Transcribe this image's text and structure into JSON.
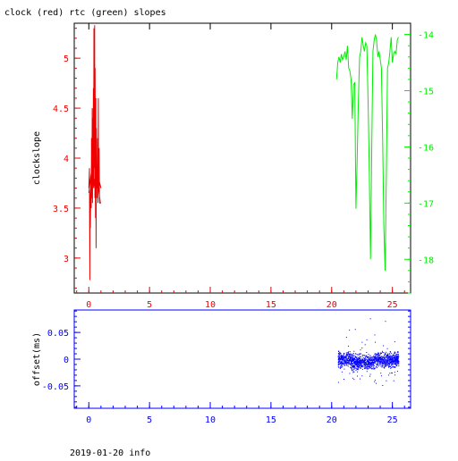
{
  "title": "clock (red) rtc (green) slopes",
  "footer": "2019-01-20 info",
  "colors": {
    "red": "#ee0000",
    "green": "#00ee00",
    "blue": "#0000ff",
    "black": "#000000"
  },
  "chart_data": [
    {
      "type": "line",
      "title": "clock (red) rtc (green) slopes",
      "xlabel": "",
      "ylabel": "clockslope",
      "xlim": [
        -1.2,
        26.5
      ],
      "xticks": [
        0,
        5,
        10,
        15,
        20,
        25
      ],
      "ylim": [
        2.65,
        5.35
      ],
      "yticks": [
        3,
        3.5,
        4,
        4.5,
        5
      ],
      "ytick_labels": [
        "3",
        "3.5",
        "4",
        "4.5",
        "5"
      ],
      "y2lim": [
        -18.6,
        -13.8
      ],
      "y2ticks": [
        -14,
        -15,
        -16,
        -17,
        -18
      ],
      "y2tick_labels": [
        "-14",
        "-15",
        "-16",
        "-17",
        "-18"
      ],
      "grid": false,
      "series": [
        {
          "axis": "left",
          "color": "#ee0000",
          "x": [
            0.0,
            0.05,
            0.08,
            0.1,
            0.12,
            0.15,
            0.18,
            0.2,
            0.22,
            0.25,
            0.28,
            0.3,
            0.33,
            0.35,
            0.38,
            0.4,
            0.42,
            0.45,
            0.48,
            0.5,
            0.52,
            0.55,
            0.58,
            0.6,
            0.62,
            0.65,
            0.68,
            0.7,
            0.72,
            0.75,
            0.78,
            0.8,
            0.82,
            0.85,
            0.88,
            0.9,
            0.95,
            1.0,
            0.95,
            0.9,
            0.85,
            0.8,
            0.75,
            0.7,
            0.65,
            0.6,
            0.55,
            0.5,
            0.45,
            0.4,
            0.35,
            0.3,
            0.25,
            0.2,
            0.15,
            0.1,
            0.05,
            0.0,
            0.1,
            0.2,
            0.3,
            0.4,
            0.5,
            0.6,
            0.7,
            0.8,
            0.9,
            1.0
          ],
          "y": [
            3.7,
            3.9,
            2.78,
            3.6,
            3.3,
            3.55,
            3.8,
            3.5,
            4.2,
            3.6,
            4.5,
            3.55,
            4.4,
            3.8,
            4.7,
            3.7,
            5.3,
            3.9,
            5.33,
            3.6,
            4.9,
            3.4,
            4.6,
            3.1,
            4.3,
            3.7,
            3.9,
            3.6,
            4.2,
            3.55,
            4.6,
            3.8,
            3.7,
            4.1,
            3.6,
            3.55,
            3.55,
            3.55,
            3.55,
            3.6,
            3.65,
            3.7,
            3.8,
            3.75,
            3.7,
            3.8,
            3.9,
            3.8,
            3.75,
            3.7,
            3.8,
            3.9,
            3.7,
            3.6,
            3.5,
            3.6,
            3.7,
            3.65,
            3.75,
            3.85,
            3.8,
            3.75,
            3.8,
            3.85,
            3.8,
            3.8,
            3.75,
            3.7
          ]
        },
        {
          "axis": "right",
          "color": "#00ee00",
          "x": [
            20.4,
            20.5,
            20.6,
            20.7,
            20.8,
            20.9,
            21.0,
            21.1,
            21.2,
            21.3,
            21.4,
            21.5,
            21.6,
            21.7,
            21.8,
            21.9,
            22.0,
            22.1,
            22.2,
            22.3,
            22.4,
            22.5,
            22.6,
            22.7,
            22.8,
            22.9,
            23.0,
            23.1,
            23.2,
            23.3,
            23.4,
            23.5,
            23.6,
            23.7,
            23.8,
            23.9,
            24.0,
            24.1,
            24.2,
            24.3,
            24.4,
            24.5,
            24.6,
            24.7,
            24.8,
            24.9,
            25.0,
            25.1,
            25.2,
            25.3,
            25.4,
            25.5
          ],
          "y": [
            -14.8,
            -14.5,
            -14.4,
            -14.5,
            -14.35,
            -14.45,
            -14.4,
            -14.3,
            -14.45,
            -14.2,
            -14.6,
            -14.65,
            -14.8,
            -15.5,
            -14.9,
            -14.85,
            -17.1,
            -16.2,
            -15.2,
            -14.4,
            -14.3,
            -14.05,
            -14.2,
            -14.3,
            -14.15,
            -14.2,
            -15.2,
            -16.4,
            -18.0,
            -16.0,
            -14.3,
            -14.1,
            -14.0,
            -14.1,
            -14.4,
            -14.3,
            -14.45,
            -14.6,
            -15.9,
            -17.4,
            -18.2,
            -16.5,
            -14.6,
            -14.5,
            -14.3,
            -14.05,
            -14.5,
            -14.35,
            -14.3,
            -14.35,
            -14.1,
            -14.05
          ]
        }
      ]
    },
    {
      "type": "scatter",
      "title": "",
      "xlabel": "",
      "ylabel": "offset(ms)",
      "xlim": [
        -1.2,
        26.5
      ],
      "xticks": [
        0,
        5,
        10,
        15,
        20,
        25
      ],
      "ylim": [
        -0.092,
        0.092
      ],
      "yticks": [
        0.05,
        0,
        -0.05
      ],
      "ytick_labels": [
        "0.05",
        "0",
        "-0.05"
      ],
      "grid": false,
      "series": [
        {
          "color": "#0000ff",
          "x_range": [
            20.5,
            25.5
          ],
          "core_spread": 0.02,
          "outlier_spread": 0.085,
          "count": 1400
        }
      ]
    }
  ]
}
